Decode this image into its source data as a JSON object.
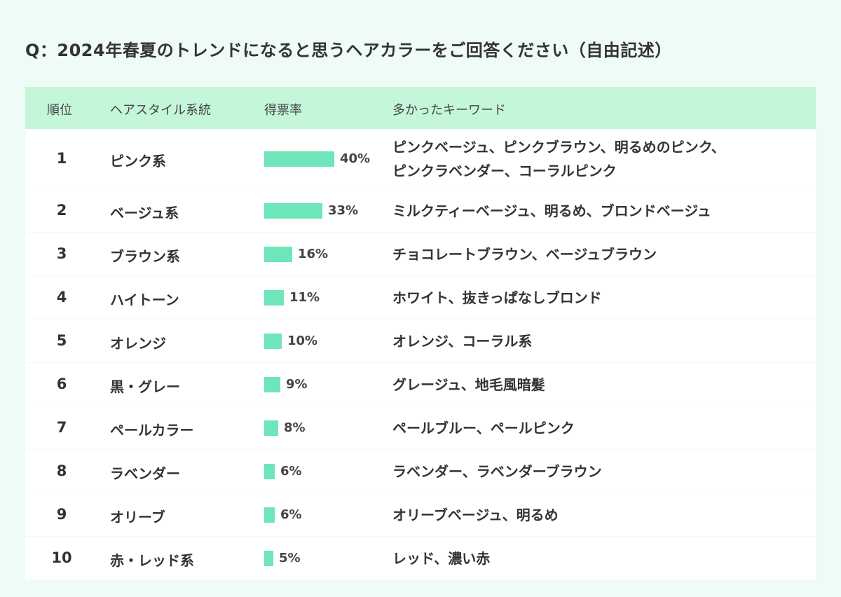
{
  "title": "Q：2024年春夏のトレンドになると思うヘアカラーをご回答ください（自由記述）",
  "colors": {
    "bar": "#6ee6b9",
    "header_bg": "#c4f7da",
    "page_bg": "#effbf6"
  },
  "chart_data": {
    "type": "table",
    "columns": [
      "順位",
      "ヘアスタイル系統",
      "得票率",
      "多かったキーワード"
    ],
    "rows": [
      {
        "rank": "1",
        "style": "ピンク系",
        "value": 40,
        "label": "40%",
        "keywords": [
          "ピンクベージュ、ピンクブラウン、明るめのピンク、",
          "ピンクラベンダー、コーラルピンク"
        ]
      },
      {
        "rank": "2",
        "style": "ベージュ系",
        "value": 33,
        "label": "33%",
        "keywords": [
          "ミルクティーベージュ、明るめ、ブロンドベージュ"
        ]
      },
      {
        "rank": "3",
        "style": "ブラウン系",
        "value": 16,
        "label": "16%",
        "keywords": [
          "チョコレートブラウン、ベージュブラウン"
        ]
      },
      {
        "rank": "4",
        "style": "ハイトーン",
        "value": 11,
        "label": "11%",
        "keywords": [
          "ホワイト、抜きっぱなしブロンド"
        ]
      },
      {
        "rank": "5",
        "style": "オレンジ",
        "value": 10,
        "label": "10%",
        "keywords": [
          "オレンジ、コーラル系"
        ]
      },
      {
        "rank": "6",
        "style": "黒・グレー",
        "value": 9,
        "label": "9%",
        "keywords": [
          "グレージュ、地毛風暗髪"
        ]
      },
      {
        "rank": "7",
        "style": "ペールカラー",
        "value": 8,
        "label": "8%",
        "keywords": [
          "ペールブルー、ペールピンク"
        ]
      },
      {
        "rank": "8",
        "style": "ラベンダー",
        "value": 6,
        "label": "6%",
        "keywords": [
          "ラベンダー、ラベンダーブラウン"
        ]
      },
      {
        "rank": "9",
        "style": "オリーブ",
        "value": 6,
        "label": "6%",
        "keywords": [
          "オリーブベージュ、明るめ"
        ]
      },
      {
        "rank": "10",
        "style": "赤・レッド系",
        "value": 5,
        "label": "5%",
        "keywords": [
          "レッド、濃い赤"
        ]
      }
    ]
  }
}
